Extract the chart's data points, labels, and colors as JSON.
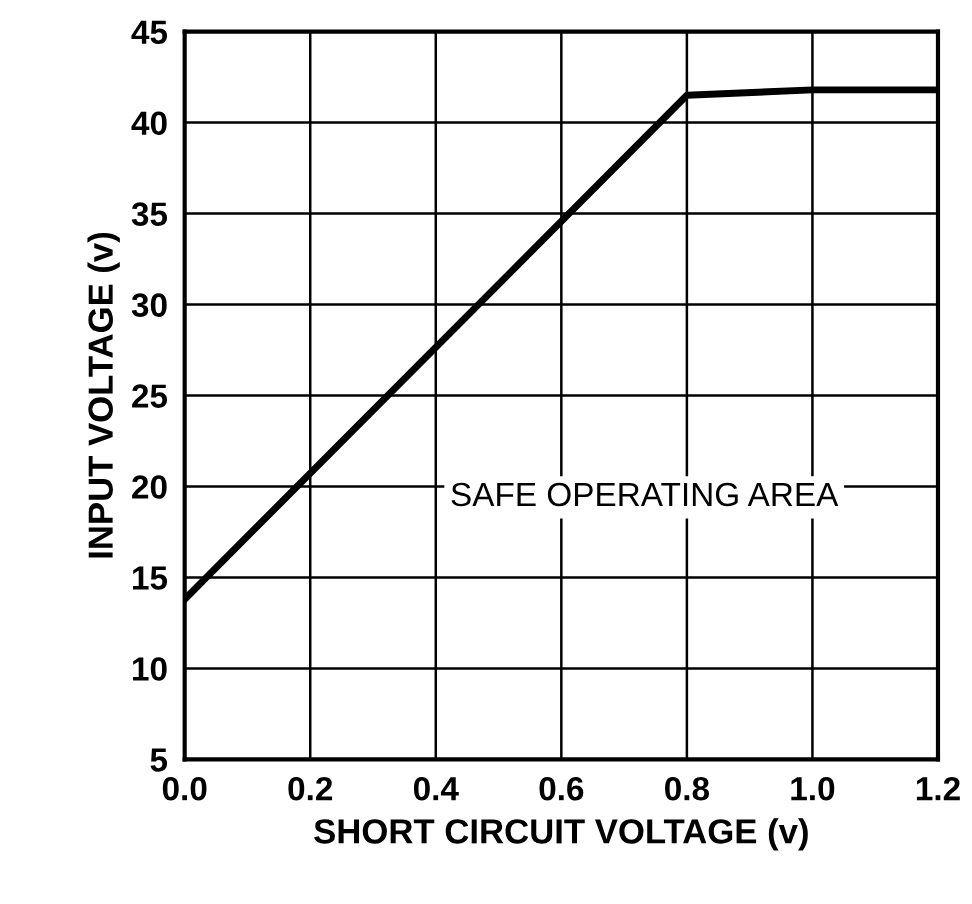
{
  "chart_data": {
    "type": "line",
    "xlabel": "SHORT CIRCUIT VOLTAGE (v)",
    "ylabel": "INPUT VOLTAGE (v)",
    "x": [
      0.0,
      0.8,
      1.0,
      1.2
    ],
    "series": [
      {
        "color": "#000000",
        "values": [
          13.8,
          41.5,
          41.8,
          41.8
        ]
      }
    ],
    "xlim": [
      0.0,
      1.2
    ],
    "xticks": [
      {
        "value": 0,
        "label": "0.0"
      },
      0.2,
      0.4,
      0.6,
      0.8,
      {
        "value": 1,
        "label": "1.0"
      },
      1.2
    ],
    "ylim": [
      5,
      45
    ],
    "yticks": [
      5,
      10,
      15,
      20,
      25,
      30,
      35,
      40,
      45
    ],
    "grid": true,
    "marker": "none",
    "line_style": "solid",
    "annotations": [
      "SAFE OPERATING AREA"
    ]
  }
}
